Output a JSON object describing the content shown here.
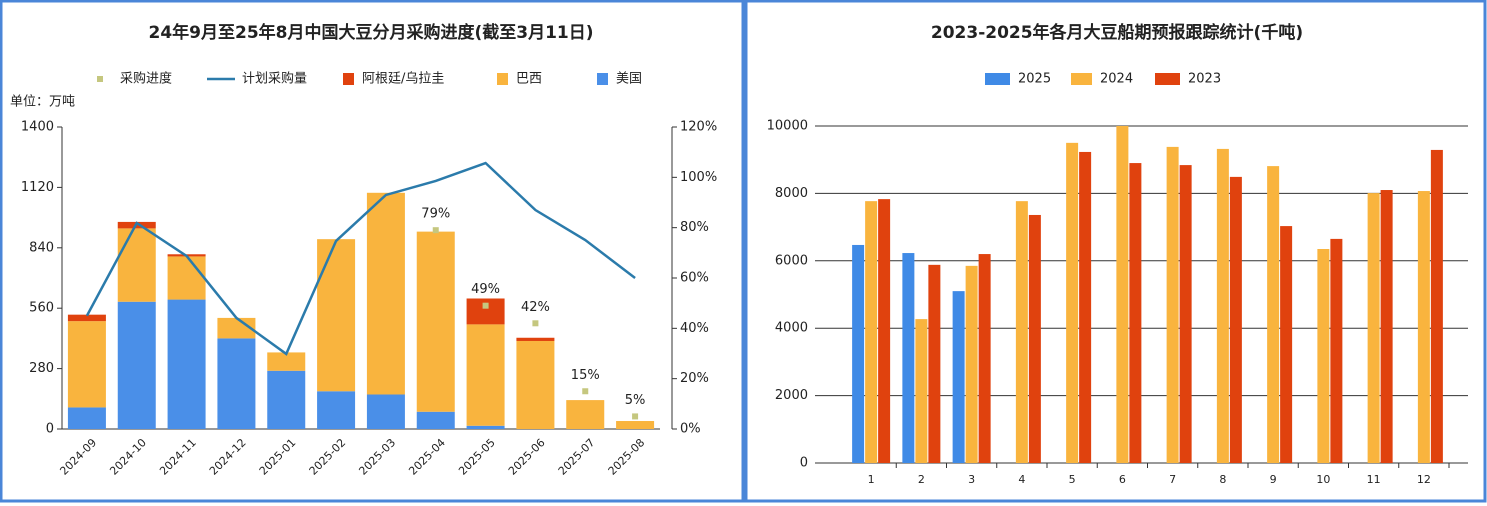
{
  "chart_data": [
    {
      "type": "combo",
      "title": "24年9月至25年8月中国大豆分月采购进度(截至3月11日)",
      "unit_label": "单位：万吨",
      "categories": [
        "2024-09",
        "2024-10",
        "2024-11",
        "2024-12",
        "2025-01",
        "2025-02",
        "2025-03",
        "2025-04",
        "2025-05",
        "2025-06",
        "2025-07",
        "2025-08"
      ],
      "series": [
        {
          "name": "采购进度",
          "type": "scatter",
          "axis": "y2",
          "color": "#c5c77f",
          "values": [
            null,
            null,
            null,
            null,
            null,
            null,
            null,
            79,
            49,
            42,
            15,
            5
          ],
          "value_labels": [
            null,
            null,
            null,
            null,
            null,
            null,
            null,
            "79%",
            "49%",
            "42%",
            "15%",
            "5%"
          ]
        },
        {
          "name": "计划采购量",
          "type": "line",
          "color": "#2b7bab",
          "values": [
            525,
            955,
            802,
            515,
            348,
            872,
            1085,
            1150,
            1233,
            1015,
            876,
            700
          ]
        },
        {
          "name": "阿根廷/乌拉圭",
          "type": "bar",
          "color": "#e0420e",
          "values": [
            30,
            30,
            10,
            0,
            0,
            0,
            0,
            0,
            120,
            15,
            0,
            0
          ]
        },
        {
          "name": "巴西",
          "type": "bar",
          "color": "#f9b43e",
          "values": [
            400,
            340,
            200,
            95,
            85,
            705,
            935,
            835,
            470,
            408,
            134,
            37
          ]
        },
        {
          "name": "美国",
          "type": "bar",
          "color": "#4a8fe8",
          "values": [
            100,
            590,
            600,
            420,
            270,
            175,
            160,
            80,
            15,
            0,
            0,
            0
          ]
        }
      ],
      "stacked": true,
      "ylim": [
        0,
        1400
      ],
      "yticks": [
        0,
        280,
        560,
        840,
        1120,
        1400
      ],
      "y2lim": [
        0,
        120
      ],
      "y2ticks": [
        {
          "value": 0,
          "label": "0%"
        },
        {
          "value": 20,
          "label": "20%"
        },
        {
          "value": 40,
          "label": "40%"
        },
        {
          "value": 60,
          "label": "60%"
        },
        {
          "value": 80,
          "label": "80%"
        },
        {
          "value": 100,
          "label": "100%"
        },
        {
          "value": 120,
          "label": "120%"
        }
      ],
      "grid": false
    },
    {
      "type": "bar",
      "title": "2023-2025年各月大豆船期预报跟踪统计(千吨)",
      "categories": [
        "1",
        "2",
        "3",
        "4",
        "5",
        "6",
        "7",
        "8",
        "9",
        "10",
        "11",
        "12"
      ],
      "series": [
        {
          "name": "2025",
          "color": "#3f8ae6",
          "values": [
            6470,
            6230,
            5100,
            null,
            null,
            null,
            null,
            null,
            null,
            null,
            null,
            null
          ]
        },
        {
          "name": "2024",
          "color": "#f9b43e",
          "values": [
            7770,
            4270,
            5850,
            7770,
            9500,
            10000,
            9380,
            9320,
            8810,
            6350,
            8010,
            8070
          ]
        },
        {
          "name": "2023",
          "color": "#e0420e",
          "values": [
            7830,
            5880,
            6200,
            7360,
            9230,
            8900,
            8840,
            8490,
            7030,
            6650,
            8100,
            9290
          ]
        }
      ],
      "ylim": [
        0,
        10000
      ],
      "yticks": [
        0,
        2000,
        4000,
        6000,
        8000,
        10000
      ],
      "grid": true
    }
  ]
}
